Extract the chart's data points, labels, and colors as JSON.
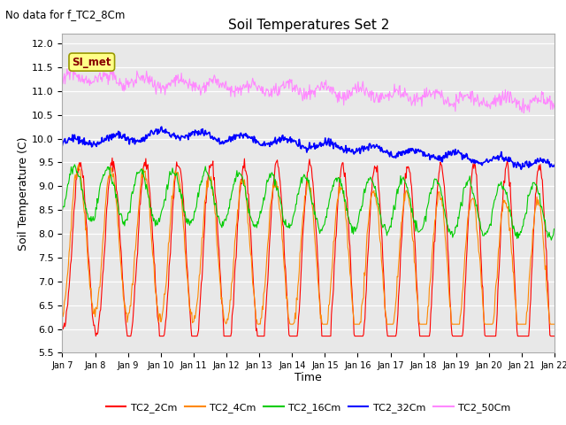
{
  "title": "Soil Temperatures Set 2",
  "subtitle": "No data for f_TC2_8Cm",
  "xlabel": "Time",
  "ylabel": "Soil Temperature (C)",
  "ylim": [
    5.5,
    12.2
  ],
  "fig_bg_color": "#ffffff",
  "plot_bg_color": "#e8e8e8",
  "legend_entries": [
    "TC2_2Cm",
    "TC2_4Cm",
    "TC2_16Cm",
    "TC2_32Cm",
    "TC2_50Cm"
  ],
  "line_colors": [
    "#ff0000",
    "#ff8800",
    "#00cc00",
    "#0000ff",
    "#ff88ff"
  ],
  "si_met_box_color": "#ffff88",
  "si_met_text_color": "#880000",
  "x_tick_labels": [
    "Jan 7",
    "Jan 8",
    "Jan 9",
    "Jan 10",
    "Jan 11",
    "Jan 12",
    "Jan 13",
    "Jan 14",
    "Jan 15",
    "Jan 16",
    "Jan 17",
    "Jan 18",
    "Jan 19",
    "Jan 20",
    "Jan 21",
    "Jan 22"
  ],
  "yticks": [
    5.5,
    6.0,
    6.5,
    7.0,
    7.5,
    8.0,
    8.5,
    9.0,
    9.5,
    10.0,
    10.5,
    11.0,
    11.5,
    12.0
  ],
  "n_points": 720
}
